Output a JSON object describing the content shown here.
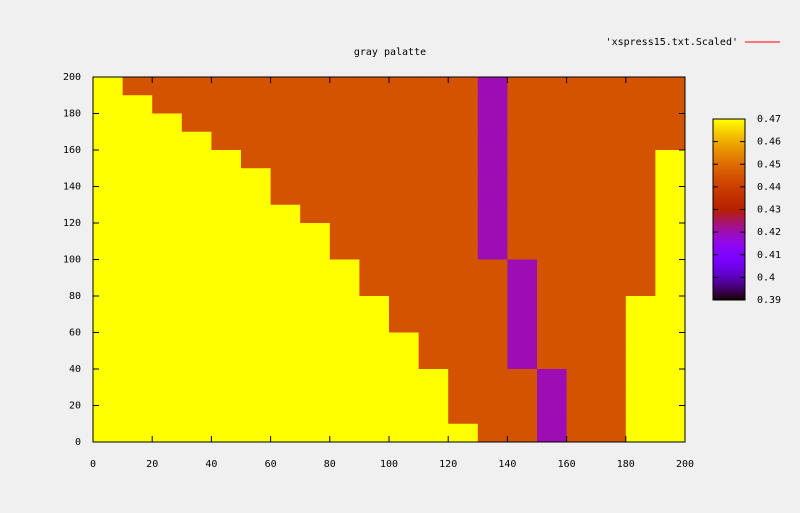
{
  "chart_data": {
    "type": "heatmap",
    "title": "gray palatte",
    "legend": {
      "label": "'xspress15.txt.Scaled'",
      "color": "#ff0000"
    },
    "x": [
      5,
      15,
      25,
      35,
      45,
      55,
      65,
      75,
      85,
      95,
      105,
      115,
      125,
      135,
      145,
      155,
      165,
      175,
      185,
      195
    ],
    "y": [
      195,
      185,
      175,
      165,
      155,
      145,
      135,
      125,
      115,
      105,
      95,
      85,
      75,
      65,
      55,
      45,
      35,
      25,
      15,
      5
    ],
    "z": [
      [
        0.47,
        0.445,
        0.445,
        0.445,
        0.445,
        0.445,
        0.445,
        0.445,
        0.445,
        0.445,
        0.445,
        0.445,
        0.445,
        0.42,
        0.445,
        0.445,
        0.445,
        0.445,
        0.445,
        0.445
      ],
      [
        0.47,
        0.47,
        0.445,
        0.445,
        0.445,
        0.445,
        0.445,
        0.445,
        0.445,
        0.445,
        0.445,
        0.445,
        0.445,
        0.42,
        0.445,
        0.445,
        0.445,
        0.445,
        0.445,
        0.445
      ],
      [
        0.47,
        0.47,
        0.47,
        0.445,
        0.445,
        0.445,
        0.445,
        0.445,
        0.445,
        0.445,
        0.445,
        0.445,
        0.445,
        0.42,
        0.445,
        0.445,
        0.445,
        0.445,
        0.445,
        0.445
      ],
      [
        0.47,
        0.47,
        0.47,
        0.47,
        0.445,
        0.445,
        0.445,
        0.445,
        0.445,
        0.445,
        0.445,
        0.445,
        0.445,
        0.42,
        0.445,
        0.445,
        0.445,
        0.445,
        0.445,
        0.445
      ],
      [
        0.47,
        0.47,
        0.47,
        0.47,
        0.47,
        0.445,
        0.445,
        0.445,
        0.445,
        0.445,
        0.445,
        0.445,
        0.445,
        0.42,
        0.445,
        0.445,
        0.445,
        0.445,
        0.445,
        0.47
      ],
      [
        0.47,
        0.47,
        0.47,
        0.47,
        0.47,
        0.47,
        0.445,
        0.445,
        0.445,
        0.445,
        0.445,
        0.445,
        0.445,
        0.42,
        0.445,
        0.445,
        0.445,
        0.445,
        0.445,
        0.47
      ],
      [
        0.47,
        0.47,
        0.47,
        0.47,
        0.47,
        0.47,
        0.445,
        0.445,
        0.445,
        0.445,
        0.445,
        0.445,
        0.445,
        0.42,
        0.445,
        0.445,
        0.445,
        0.445,
        0.445,
        0.47
      ],
      [
        0.47,
        0.47,
        0.47,
        0.47,
        0.47,
        0.47,
        0.47,
        0.445,
        0.445,
        0.445,
        0.445,
        0.445,
        0.445,
        0.42,
        0.445,
        0.445,
        0.445,
        0.445,
        0.445,
        0.47
      ],
      [
        0.47,
        0.47,
        0.47,
        0.47,
        0.47,
        0.47,
        0.47,
        0.47,
        0.445,
        0.445,
        0.445,
        0.445,
        0.445,
        0.42,
        0.445,
        0.445,
        0.445,
        0.445,
        0.445,
        0.47
      ],
      [
        0.47,
        0.47,
        0.47,
        0.47,
        0.47,
        0.47,
        0.47,
        0.47,
        0.445,
        0.445,
        0.445,
        0.445,
        0.445,
        0.42,
        0.445,
        0.445,
        0.445,
        0.445,
        0.445,
        0.47
      ],
      [
        0.47,
        0.47,
        0.47,
        0.47,
        0.47,
        0.47,
        0.47,
        0.47,
        0.47,
        0.445,
        0.445,
        0.445,
        0.445,
        0.445,
        0.42,
        0.445,
        0.445,
        0.445,
        0.445,
        0.47
      ],
      [
        0.47,
        0.47,
        0.47,
        0.47,
        0.47,
        0.47,
        0.47,
        0.47,
        0.47,
        0.445,
        0.445,
        0.445,
        0.445,
        0.445,
        0.42,
        0.445,
        0.445,
        0.445,
        0.445,
        0.47
      ],
      [
        0.47,
        0.47,
        0.47,
        0.47,
        0.47,
        0.47,
        0.47,
        0.47,
        0.47,
        0.47,
        0.445,
        0.445,
        0.445,
        0.445,
        0.42,
        0.445,
        0.445,
        0.445,
        0.47,
        0.47
      ],
      [
        0.47,
        0.47,
        0.47,
        0.47,
        0.47,
        0.47,
        0.47,
        0.47,
        0.47,
        0.47,
        0.445,
        0.445,
        0.445,
        0.445,
        0.42,
        0.445,
        0.445,
        0.445,
        0.47,
        0.47
      ],
      [
        0.47,
        0.47,
        0.47,
        0.47,
        0.47,
        0.47,
        0.47,
        0.47,
        0.47,
        0.47,
        0.47,
        0.445,
        0.445,
        0.445,
        0.42,
        0.445,
        0.445,
        0.445,
        0.47,
        0.47
      ],
      [
        0.47,
        0.47,
        0.47,
        0.47,
        0.47,
        0.47,
        0.47,
        0.47,
        0.47,
        0.47,
        0.47,
        0.445,
        0.445,
        0.445,
        0.42,
        0.445,
        0.445,
        0.445,
        0.47,
        0.47
      ],
      [
        0.47,
        0.47,
        0.47,
        0.47,
        0.47,
        0.47,
        0.47,
        0.47,
        0.47,
        0.47,
        0.47,
        0.47,
        0.445,
        0.445,
        0.445,
        0.42,
        0.445,
        0.445,
        0.47,
        0.47
      ],
      [
        0.47,
        0.47,
        0.47,
        0.47,
        0.47,
        0.47,
        0.47,
        0.47,
        0.47,
        0.47,
        0.47,
        0.47,
        0.445,
        0.445,
        0.445,
        0.42,
        0.445,
        0.445,
        0.47,
        0.47
      ],
      [
        0.47,
        0.47,
        0.47,
        0.47,
        0.47,
        0.47,
        0.47,
        0.47,
        0.47,
        0.47,
        0.47,
        0.47,
        0.445,
        0.445,
        0.445,
        0.42,
        0.445,
        0.445,
        0.47,
        0.47
      ],
      [
        0.47,
        0.47,
        0.47,
        0.47,
        0.47,
        0.47,
        0.47,
        0.47,
        0.47,
        0.47,
        0.47,
        0.47,
        0.47,
        0.445,
        0.445,
        0.42,
        0.445,
        0.445,
        0.47,
        0.47
      ]
    ],
    "xlim": [
      0,
      200
    ],
    "xticks": [
      0,
      20,
      40,
      60,
      80,
      100,
      120,
      140,
      160,
      180,
      200
    ],
    "ylim": [
      0,
      200
    ],
    "yticks": [
      0,
      20,
      40,
      60,
      80,
      100,
      120,
      140,
      160,
      180,
      200
    ],
    "cblim": [
      0.39,
      0.47
    ],
    "cbticks": [
      0.39,
      0.4,
      0.41,
      0.42,
      0.43,
      0.44,
      0.45,
      0.46,
      0.47
    ],
    "palette": "rgbformulae 7,5,15"
  }
}
